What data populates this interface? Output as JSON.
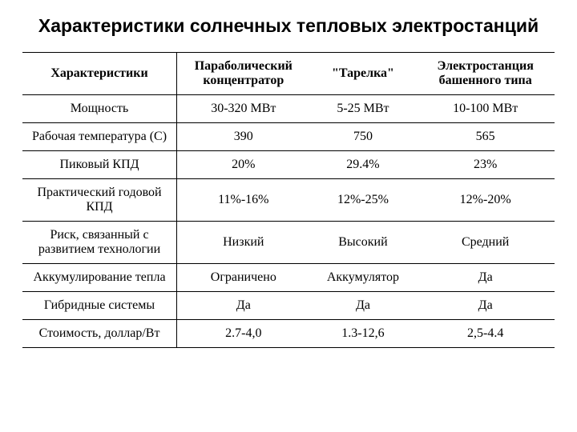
{
  "title": "Характеристики солнечных тепловых электростанций",
  "table": {
    "type": "table",
    "columns": [
      "Характеристики",
      "Параболический концентратор",
      "\"Тарелка\"",
      "Электростанция башенного типа"
    ],
    "rows": [
      [
        "Мощность",
        "30-320 МВт",
        "5-25 МВт",
        "10-100 МВт"
      ],
      [
        "Рабочая температура (С)",
        "390",
        "750",
        "565"
      ],
      [
        "Пиковый КПД",
        "20%",
        "29.4%",
        "23%"
      ],
      [
        "Практический годовой КПД",
        "11%-16%",
        "12%-25%",
        "12%-20%"
      ],
      [
        "Риск, связанный с развитием технологии",
        "Низкий",
        "Высокий",
        "Средний"
      ],
      [
        "Аккумулирование тепла",
        "Ограничено",
        "Аккумулятор",
        "Да"
      ],
      [
        "Гибридные системы",
        "Да",
        "Да",
        "Да"
      ],
      [
        "Стоимость, доллар/Вт",
        "2.7-4,0",
        "1.3-12,6",
        "2,5-4.4"
      ]
    ],
    "column_widths_pct": [
      29,
      25,
      20,
      26
    ],
    "border_color": "#000000",
    "background_color": "#ffffff",
    "header_font_weight": 700,
    "body_font_weight": 400,
    "font_family_body": "Times New Roman",
    "font_family_title": "Arial",
    "title_fontsize_pt": 17,
    "body_fontsize_pt": 12,
    "text_align": "center"
  }
}
